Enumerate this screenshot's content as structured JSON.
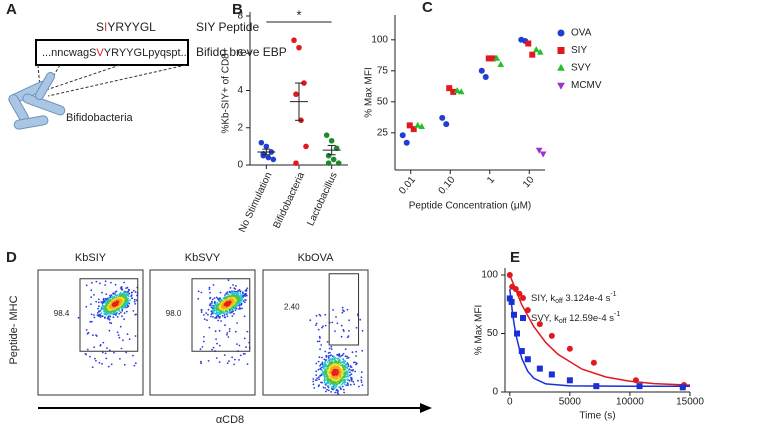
{
  "diagram": {
    "panel": "A",
    "peptide_parts": [
      "S",
      "I",
      "YRYYGL"
    ],
    "peptide_label": "SIY Peptide",
    "sequence_parts": [
      "...nncwagS",
      "V",
      "YRYYGLpyqspt.."
    ],
    "sequence_label": "Bifido breve EBP",
    "organism": "Bifidobacteria"
  },
  "chart_data": [
    {
      "type": "strip",
      "panel": "B",
      "y_label": "%Kb-SIY+ of CD8+",
      "ylim": [
        0,
        8
      ],
      "yticks": [
        0,
        2,
        4,
        6,
        8
      ],
      "categories": [
        "No Stimulation",
        "Bifidobacteria",
        "Lactobacillus"
      ],
      "groups": [
        {
          "color": "#1f3fd1",
          "values": [
            1.2,
            1.0,
            0.7,
            0.5,
            0.4,
            0.3,
            0.6
          ],
          "mean": 0.7,
          "sem": 0.15
        },
        {
          "color": "#e0191e",
          "values": [
            6.7,
            6.3,
            4.4,
            3.8,
            2.4,
            1.0,
            0.1
          ],
          "mean": 3.4,
          "sem": 1.0
        },
        {
          "color": "#1e8a2e",
          "values": [
            1.6,
            1.3,
            0.9,
            0.5,
            0.3,
            0.1,
            0.1
          ],
          "mean": 0.8,
          "sem": 0.25
        }
      ],
      "annotation": "*"
    },
    {
      "type": "scatter",
      "panel": "C",
      "x_label": "Peptide Concentration  (μM)",
      "y_label": "% Max MFI",
      "log_x": true,
      "xlim": [
        0.004,
        25
      ],
      "ylim": [
        -5,
        120
      ],
      "xticks": [
        0.01,
        {
          "value": 0.1,
          "label": "0.10"
        },
        1,
        10
      ],
      "yticks": [
        25,
        50,
        75,
        100
      ],
      "legend": "right",
      "series": [
        {
          "name": "OVA",
          "color": "#1f3fd1",
          "marker": "circle",
          "x": [
            0.01,
            0.01,
            0.1,
            0.1,
            1,
            1,
            10,
            10
          ],
          "values": [
            23,
            17,
            37,
            32,
            75,
            70,
            100,
            99
          ]
        },
        {
          "name": "SIY",
          "color": "#e0191e",
          "marker": "square",
          "x": [
            0.01,
            0.01,
            0.1,
            0.1,
            1,
            1,
            10,
            10
          ],
          "values": [
            31,
            28,
            61,
            58,
            85,
            85,
            97,
            88
          ]
        },
        {
          "name": "SVY",
          "color": "#22c02a",
          "marker": "triangle",
          "x": [
            0.01,
            0.01,
            0.1,
            0.1,
            1,
            1,
            10,
            10
          ],
          "values": [
            31,
            30,
            59,
            58,
            85,
            80,
            92,
            90
          ]
        },
        {
          "name": "MCMV",
          "color": "#9a32cd",
          "marker": "triangle-down",
          "x": [
            20,
            20
          ],
          "values": [
            11,
            8
          ]
        }
      ]
    },
    {
      "type": "scatter",
      "panel": "E",
      "x_label": "Time (s)",
      "y_label": "% Max MFI",
      "xlim": [
        -400,
        15000
      ],
      "ylim": [
        0,
        106
      ],
      "xticks": [
        0,
        5000,
        10000,
        15000
      ],
      "yticks": [
        0,
        50,
        100
      ],
      "legend": "inside",
      "series": [
        {
          "name": "SIY, k",
          "name_sub": "off",
          "name_rest": " 3.124e-4 s",
          "name_sup": "-1",
          "color": "#e0191e",
          "marker": "circle",
          "x": [
            0,
            200,
            500,
            800,
            1500,
            2500,
            3500,
            5000,
            7000,
            10500,
            14500
          ],
          "values": [
            100,
            90,
            88,
            84,
            70,
            58,
            48,
            37,
            25,
            10,
            6
          ],
          "fit_x": [
            0,
            1000,
            2000,
            3000,
            4000,
            6000,
            8000,
            10000,
            12000,
            15000
          ],
          "fit_values": [
            100,
            74.5,
            55.9,
            42.2,
            32.2,
            19.6,
            12.8,
            9.2,
            7.2,
            5.9
          ]
        },
        {
          "name": "SVY, k",
          "name_sub": "off",
          "name_rest": " 12.59e-4 s",
          "name_sup": "-1",
          "color": "#1a2fd6",
          "marker": "square",
          "x": [
            0,
            150,
            350,
            600,
            1000,
            1500,
            2500,
            3500,
            5000,
            7200,
            10800,
            14400
          ],
          "values": [
            80,
            77,
            66,
            50,
            35,
            28,
            20,
            15,
            10,
            5,
            5,
            4
          ],
          "fit_x": [
            0,
            250,
            500,
            1000,
            1500,
            2000,
            3000,
            5000,
            10000,
            15000
          ],
          "fit_values": [
            88,
            65.4,
            49.2,
            28.6,
            17.6,
            11.7,
            6.9,
            5.2,
            5,
            5
          ]
        }
      ]
    }
  ],
  "flow": {
    "panel": "D",
    "y_label": "Peptide- MHC",
    "x_label": "αCD8",
    "plots": [
      {
        "title": "KbSIY",
        "gate": "98.4"
      },
      {
        "title": "KbSVY",
        "gate": "98.0"
      },
      {
        "title": "KbOVA",
        "gate": "2.40"
      }
    ]
  }
}
